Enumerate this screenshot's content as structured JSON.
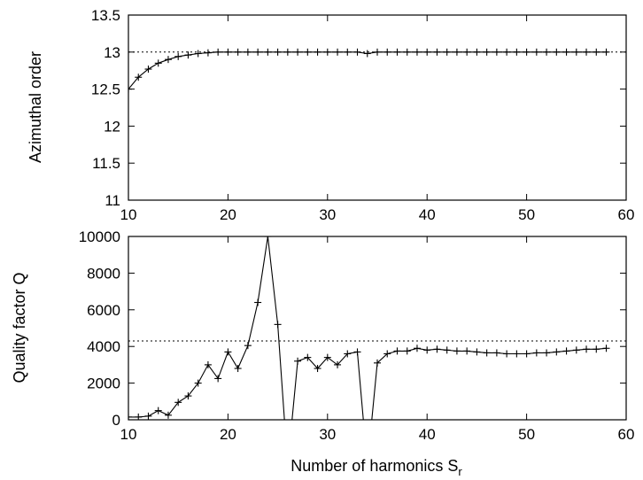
{
  "chart_data": [
    {
      "type": "line",
      "title": "",
      "ylabel": "Azimuthal order",
      "xlabel": "",
      "xlim": [
        10,
        60
      ],
      "ylim": [
        11,
        13.5
      ],
      "xticks": [
        10,
        20,
        30,
        40,
        50,
        60
      ],
      "yticks": [
        11,
        11.5,
        12,
        12.5,
        13,
        13.5
      ],
      "xtick_labels": [
        "10",
        "20",
        "30",
        "40",
        "50",
        "60"
      ],
      "ytick_labels": [
        "11",
        "11.5",
        "12",
        "12.5",
        "13",
        "13.5"
      ],
      "reference_line": 13,
      "x": [
        10,
        11,
        12,
        13,
        14,
        15,
        16,
        17,
        18,
        19,
        20,
        21,
        22,
        23,
        24,
        25,
        26,
        27,
        28,
        29,
        30,
        31,
        32,
        33,
        34,
        35,
        36,
        37,
        38,
        39,
        40,
        41,
        42,
        43,
        44,
        45,
        46,
        47,
        48,
        49,
        50,
        51,
        52,
        53,
        54,
        55,
        56,
        57,
        58
      ],
      "series": [
        {
          "values": [
            12.5,
            12.66,
            12.77,
            12.85,
            12.9,
            12.94,
            12.96,
            12.98,
            12.99,
            13.0,
            13.0,
            13.0,
            13.0,
            13.0,
            13.0,
            13.0,
            13.0,
            13.0,
            13.0,
            13.0,
            13.0,
            13.0,
            13.0,
            13.0,
            12.98,
            13.0,
            13.0,
            13.0,
            13.0,
            13.0,
            13.0,
            13.0,
            13.0,
            13.0,
            13.0,
            13.0,
            13.0,
            13.0,
            13.0,
            13.0,
            13.0,
            13.0,
            13.0,
            13.0,
            13.0,
            13.0,
            13.0,
            13.0,
            13.0
          ]
        }
      ]
    },
    {
      "type": "line",
      "title": "",
      "ylabel": "Quality factor Q",
      "xlabel_main": "Number of harmonics S",
      "xlabel_sub": "r",
      "xlim": [
        10,
        60
      ],
      "ylim": [
        0,
        10000
      ],
      "xticks": [
        10,
        20,
        30,
        40,
        50,
        60
      ],
      "yticks": [
        0,
        2000,
        4000,
        6000,
        8000,
        10000
      ],
      "xtick_labels": [
        "10",
        "20",
        "30",
        "40",
        "50",
        "60"
      ],
      "ytick_labels": [
        "0",
        "2000",
        "4000",
        "6000",
        "8000",
        "10000"
      ],
      "reference_line": 4300,
      "x": [
        10,
        11,
        12,
        13,
        14,
        15,
        16,
        17,
        18,
        19,
        20,
        21,
        22,
        23,
        24,
        25,
        26,
        27,
        28,
        29,
        30,
        31,
        32,
        33,
        34,
        35,
        36,
        37,
        38,
        39,
        40,
        41,
        42,
        43,
        44,
        45,
        46,
        47,
        48,
        49,
        50,
        51,
        52,
        53,
        54,
        55,
        56,
        57,
        58
      ],
      "series": [
        {
          "values": [
            150,
            150,
            200,
            500,
            250,
            950,
            1300,
            2000,
            3000,
            2250,
            3700,
            2800,
            4050,
            6400,
            10000,
            5200,
            -2500,
            3200,
            3400,
            2800,
            3400,
            3000,
            3600,
            3700,
            -2500,
            3100,
            3600,
            3750,
            3750,
            3900,
            3800,
            3850,
            3800,
            3750,
            3750,
            3700,
            3650,
            3650,
            3600,
            3600,
            3600,
            3650,
            3650,
            3700,
            3750,
            3800,
            3850,
            3850,
            3900
          ]
        }
      ]
    }
  ]
}
